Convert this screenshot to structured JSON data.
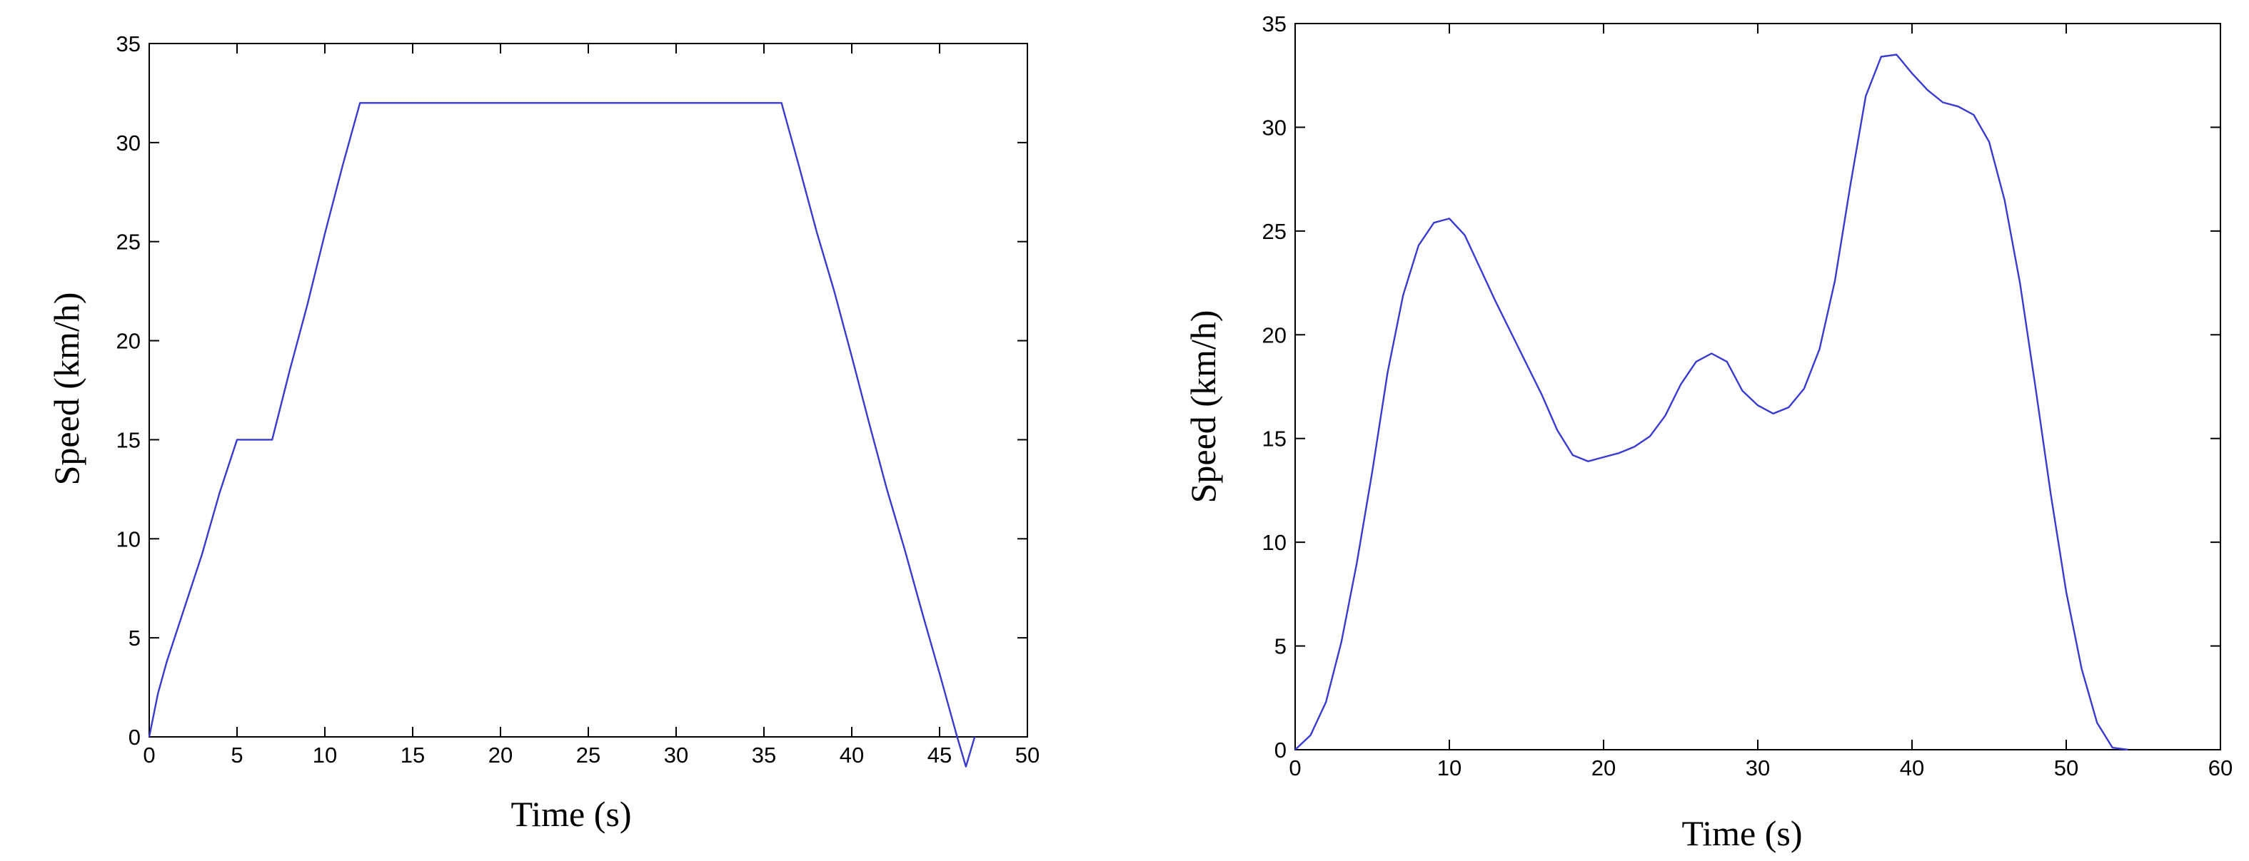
{
  "chart_data": [
    {
      "type": "line",
      "title": "",
      "xlabel": "Time (s)",
      "ylabel": "Speed (km/h)",
      "xlim": [
        0,
        50
      ],
      "ylim": [
        0,
        35
      ],
      "xticks": [
        "0",
        "5",
        "10",
        "15",
        "20",
        "25",
        "30",
        "35",
        "40",
        "45",
        "50"
      ],
      "yticks": [
        "0",
        "5",
        "10",
        "15",
        "20",
        "25",
        "30",
        "35"
      ],
      "grid": false,
      "box": true,
      "line_color": "#3a3ad0",
      "series": [
        {
          "x": [
            0,
            0.5,
            1,
            2,
            3,
            4,
            5,
            6,
            7,
            8,
            9,
            10,
            11,
            12,
            36,
            37,
            38,
            39,
            40,
            41,
            42,
            43,
            44,
            45,
            46,
            46.5,
            47
          ],
          "y": [
            0,
            2.2,
            3.8,
            6.5,
            9.2,
            12.3,
            15,
            15,
            15,
            18.5,
            21.8,
            25.4,
            28.8,
            32,
            32,
            28.8,
            25.5,
            22.5,
            19.2,
            15.8,
            12.5,
            9.5,
            6.3,
            3.2,
            0,
            -1.5,
            0
          ]
        }
      ]
    },
    {
      "type": "line",
      "title": "",
      "xlabel": "Time (s)",
      "ylabel": "Speed (km/h)",
      "xlim": [
        0,
        60
      ],
      "ylim": [
        0,
        35
      ],
      "xticks": [
        "0",
        "10",
        "20",
        "30",
        "40",
        "50",
        "60"
      ],
      "yticks": [
        "0",
        "5",
        "10",
        "15",
        "20",
        "25",
        "30",
        "35"
      ],
      "grid": false,
      "box": true,
      "line_color": "#3a3ad0",
      "series": [
        {
          "x": [
            0,
            1,
            2,
            3,
            4,
            5,
            6,
            7,
            8,
            9,
            10,
            11,
            12,
            13,
            14,
            15,
            16,
            17,
            18,
            19,
            20,
            21,
            22,
            23,
            24,
            25,
            26,
            27,
            28,
            29,
            30,
            31,
            32,
            33,
            34,
            35,
            36,
            37,
            38,
            39,
            40,
            41,
            42,
            43,
            44,
            45,
            46,
            47,
            48,
            49,
            50,
            51,
            52,
            53,
            54
          ],
          "y": [
            0,
            0.7,
            2.3,
            5.2,
            9,
            13.4,
            18.2,
            21.9,
            24.3,
            25.4,
            25.6,
            24.8,
            23.2,
            21.6,
            20.1,
            18.6,
            17.1,
            15.4,
            14.2,
            13.9,
            14.1,
            14.3,
            14.6,
            15.1,
            16.1,
            17.6,
            18.7,
            19.1,
            18.7,
            17.3,
            16.6,
            16.2,
            16.5,
            17.4,
            19.3,
            22.6,
            27.2,
            31.5,
            33.4,
            33.5,
            32.6,
            31.8,
            31.2,
            31.0,
            30.6,
            29.3,
            26.5,
            22.5,
            17.5,
            12.3,
            7.6,
            3.9,
            1.3,
            0.1,
            0
          ]
        }
      ]
    }
  ]
}
